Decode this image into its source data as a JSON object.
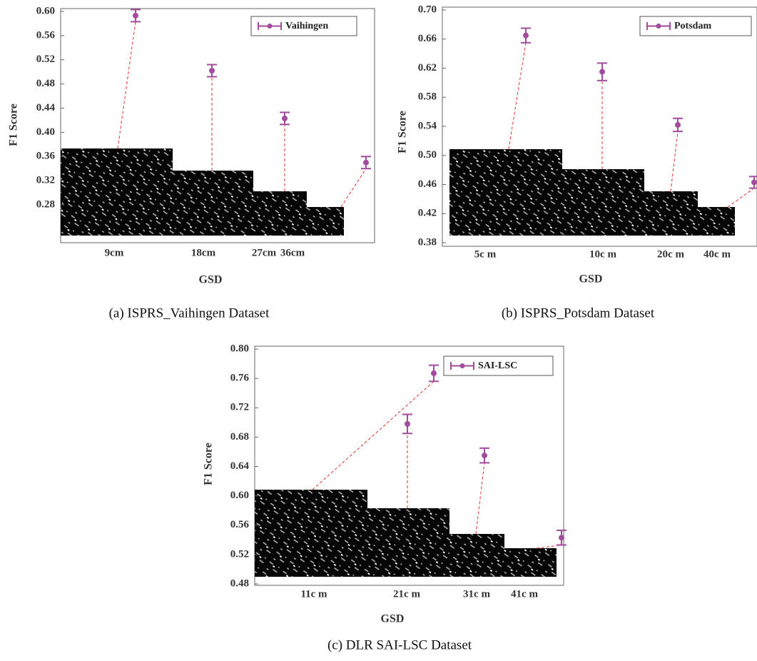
{
  "chart_data": [
    {
      "type": "errorbar",
      "caption": "(a) ISPRS_Vaihingen Dataset",
      "xlabel": "GSD",
      "ylabel": "F1 Score",
      "categories": [
        "9cm",
        "18cm",
        "27cm",
        "36cm"
      ],
      "series": [
        {
          "name": "Vaihingen",
          "color": "#a34c9e",
          "values": [
            0.593,
            0.502,
            0.423,
            0.35
          ],
          "errors": [
            0.01,
            0.01,
            0.01,
            0.01
          ]
        }
      ],
      "ylim": [
        0.28,
        0.6
      ],
      "yticks": [
        {
          "value": 0.28,
          "label": "0.28"
        },
        {
          "value": 0.32,
          "label": "0.32"
        },
        {
          "value": 0.36,
          "label": "0.36"
        },
        {
          "value": 0.4,
          "label": "0.40"
        },
        {
          "value": 0.44,
          "label": "0.44"
        },
        {
          "value": 0.48,
          "label": "0.48"
        },
        {
          "value": 0.52,
          "label": "0.52"
        },
        {
          "value": 0.56,
          "label": "0.56"
        },
        {
          "value": 0.6,
          "label": "0.60"
        }
      ]
    },
    {
      "type": "errorbar",
      "caption": "(b) ISPRS_Potsdam Dataset",
      "xlabel": "GSD",
      "ylabel": "F1 Score",
      "categories": [
        "5c m",
        "10c m",
        "20c m",
        "40c m"
      ],
      "series": [
        {
          "name": "Potsdam",
          "color": "#a34c9e",
          "values": [
            0.665,
            0.615,
            0.542,
            0.463
          ],
          "errors": [
            0.01,
            0.012,
            0.009,
            0.008
          ]
        }
      ],
      "ylim": [
        0.38,
        0.7
      ],
      "yticks": [
        {
          "value": 0.38,
          "label": "0.38"
        },
        {
          "value": 0.42,
          "label": "0.42"
        },
        {
          "value": 0.46,
          "label": "0.46"
        },
        {
          "value": 0.5,
          "label": "0.50"
        },
        {
          "value": 0.54,
          "label": "0.54"
        },
        {
          "value": 0.58,
          "label": "0.58"
        },
        {
          "value": 0.62,
          "label": "0.62"
        },
        {
          "value": 0.66,
          "label": "0.66"
        },
        {
          "value": 0.7,
          "label": "0.70"
        }
      ]
    },
    {
      "type": "errorbar",
      "caption": "(c) DLR SAI-LSC Dataset",
      "xlabel": "GSD",
      "ylabel": "F1 Score",
      "categories": [
        "11c m",
        "21c m",
        "31c m",
        "41c m"
      ],
      "series": [
        {
          "name": "SAI-LSC",
          "color": "#a34c9e",
          "values": [
            0.767,
            0.698,
            0.655,
            0.543
          ],
          "errors": [
            0.011,
            0.013,
            0.01,
            0.01
          ]
        }
      ],
      "ylim": [
        0.48,
        0.8
      ],
      "yticks": [
        {
          "value": 0.48,
          "label": "0.48"
        },
        {
          "value": 0.52,
          "label": "0.52"
        },
        {
          "value": 0.56,
          "label": "0.56"
        },
        {
          "value": 0.6,
          "label": "0.60"
        },
        {
          "value": 0.64,
          "label": "0.64"
        },
        {
          "value": 0.68,
          "label": "0.68"
        },
        {
          "value": 0.72,
          "label": "0.72"
        },
        {
          "value": 0.76,
          "label": "0.76"
        },
        {
          "value": 0.8,
          "label": "0.80"
        }
      ]
    }
  ]
}
